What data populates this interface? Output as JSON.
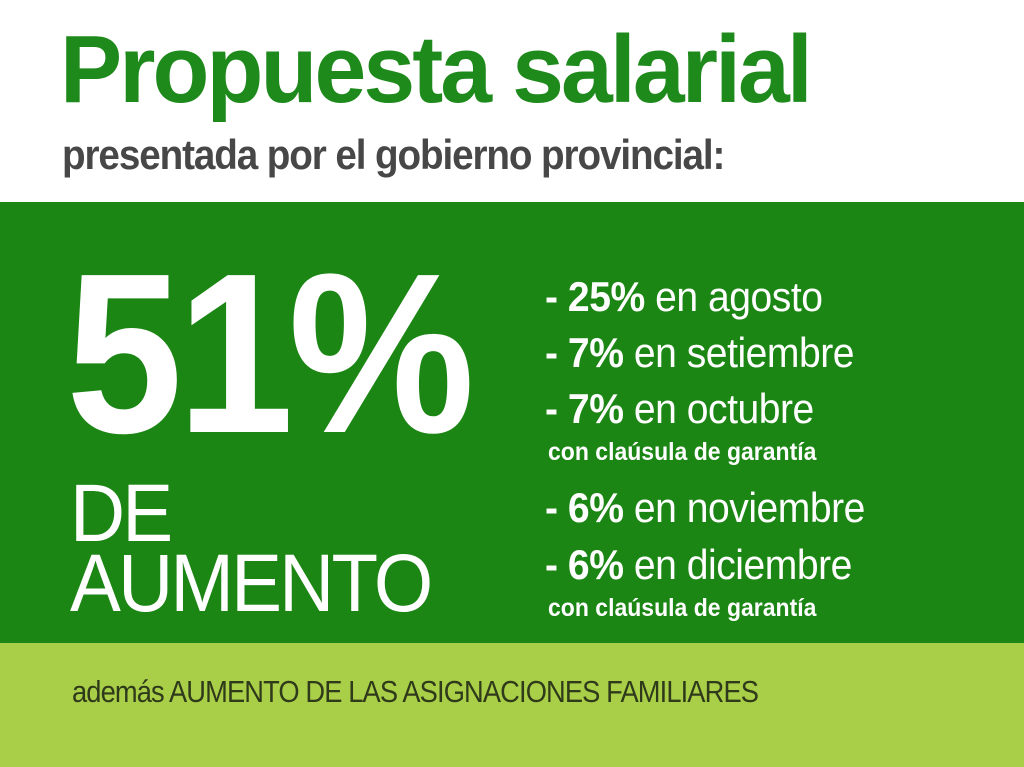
{
  "header": {
    "title": "Propuesta salarial",
    "subtitle": "presentada por el gobierno provincial:"
  },
  "main": {
    "big_number": "51%",
    "big_label_line1": "DE",
    "big_label_line2": "AUMENTO",
    "items": [
      {
        "prefix": "- 25%",
        "text": " en agosto"
      },
      {
        "prefix": "- 7%",
        "text": " en setiembre"
      },
      {
        "prefix": "- 7%",
        "text": " en octubre",
        "note": "con claúsula de garantía"
      },
      {
        "prefix": "- 6%",
        "text": " en noviembre"
      },
      {
        "prefix": "- 6%",
        "text": " en diciembre",
        "note": "con claúsula de garantía"
      }
    ]
  },
  "footer": {
    "text": "además AUMENTO DE LAS ASIGNACIONES FAMILIARES"
  },
  "colors": {
    "title_green": "#1f8a1c",
    "band_green": "#1b8614",
    "footer_green": "#a9cf48",
    "subtitle_gray": "#474747"
  }
}
